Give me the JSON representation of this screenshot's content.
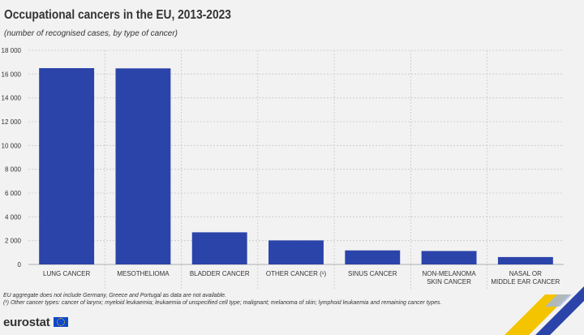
{
  "title": "Occupational cancers in the EU, 2013-2023",
  "subtitle": "(number of recognised cases, by type of cancer)",
  "footnotes": [
    "EU aggregate does not include Germany, Greece and Portugal as data are not available.",
    "(¹) Other cancer types: cancer of larynx; myeloid leukaemia; leukaemia of unspecified cell type; malignant; melanoma of skin; lymphoid leukaemia and remaining cancer types."
  ],
  "brand": {
    "name": "eurostat",
    "flag_icon": "eu-flag-icon"
  },
  "colors": {
    "bar": "#2b44aa",
    "grid": "#c8c8c8",
    "text": "#333333",
    "background": "#f2f2f2"
  },
  "chart_data": {
    "type": "bar",
    "categories": [
      [
        "LUNG CANCER"
      ],
      [
        "MESOTHELIOMA"
      ],
      [
        "BLADDER CANCER"
      ],
      [
        "OTHER CANCER (¹)"
      ],
      [
        "SINUS CANCER"
      ],
      [
        "NON-MELANOMA",
        "SKIN CANCER"
      ],
      [
        "NASAL OR",
        "MIDDLE EAR CANCER"
      ]
    ],
    "values": [
      16500,
      16480,
      2700,
      2020,
      1180,
      1130,
      620
    ],
    "ylim": [
      0,
      18000
    ],
    "yticks": [
      0,
      2000,
      4000,
      6000,
      8000,
      10000,
      12000,
      14000,
      16000,
      18000
    ],
    "ytick_labels": [
      "0",
      "2 000",
      "4 000",
      "6 000",
      "8 000",
      "10 000",
      "12 000",
      "14 000",
      "16 000",
      "18 000"
    ],
    "grid": true,
    "legend": "none"
  }
}
